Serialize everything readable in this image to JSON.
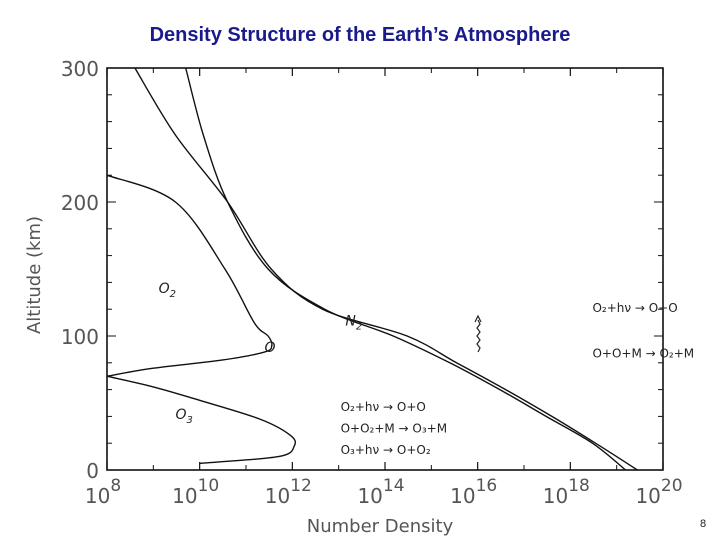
{
  "slide": {
    "title": "Density Structure of the Earth’s Atmosphere",
    "page_number": "8"
  },
  "chart_data": {
    "type": "line",
    "title": "Density Structure of the Earth’s Atmosphere",
    "xlabel": "Number Density",
    "ylabel": "Altitude (km)",
    "xscale": "log",
    "xlim": [
      100000000.0,
      1e+20
    ],
    "ylim": [
      0,
      300
    ],
    "x_ticks": [
      {
        "base": "10",
        "exp": "8",
        "value": 100000000.0
      },
      {
        "base": "10",
        "exp": "10",
        "value": 10000000000.0
      },
      {
        "base": "10",
        "exp": "12",
        "value": 1000000000000.0
      },
      {
        "base": "10",
        "exp": "14",
        "value": 100000000000000.0
      },
      {
        "base": "10",
        "exp": "16",
        "value": 1e+16
      },
      {
        "base": "10",
        "exp": "18",
        "value": 1e+18
      },
      {
        "base": "10",
        "exp": "20",
        "value": 1e+20
      }
    ],
    "y_ticks": [
      {
        "label": "0",
        "value": 0
      },
      {
        "label": "100",
        "value": 100
      },
      {
        "label": "200",
        "value": 200
      },
      {
        "label": "300",
        "value": 300
      }
    ],
    "grid": false,
    "series": [
      {
        "name": "N2",
        "label_pos": [
          14000000000000.0,
          108
        ],
        "points": [
          [
            1.55e+19,
            0
          ],
          [
            3e+18,
            20
          ],
          [
            3e+17,
            40
          ],
          [
            3e+16,
            60
          ],
          [
            2500000000000000.0,
            80
          ],
          [
            150000000000000.0,
            100
          ],
          [
            5000000000000.0,
            120
          ],
          [
            300000000000.0,
            150
          ],
          [
            40000000000.0,
            200
          ],
          [
            12000000000.0,
            250
          ],
          [
            5000000000.0,
            300
          ]
        ]
      },
      {
        "name": "O2",
        "label_pos": [
          1300000000.0,
          132
        ],
        "points": [
          [
            2.8e+19,
            0
          ],
          [
            3.5e+18,
            20
          ],
          [
            4e+17,
            40
          ],
          [
            4e+16,
            60
          ],
          [
            3500000000000000.0,
            80
          ],
          [
            300000000000000.0,
            100
          ],
          [
            4500000000000.0,
            120
          ],
          [
            350000000000.0,
            150
          ],
          [
            40000000000.0,
            200
          ],
          [
            3000000000.0,
            250
          ],
          [
            400000000.0,
            300
          ]
        ]
      },
      {
        "name": "O",
        "label_pos": [
          250000000000.0,
          88
        ],
        "points": [
          [
            100000000.0,
            70
          ],
          [
            1000000000.0,
            76
          ],
          [
            30000000000.0,
            82
          ],
          [
            250000000000.0,
            88
          ],
          [
            360000000000.0,
            93
          ],
          [
            300000000000.0,
            100
          ],
          [
            150000000000.0,
            110
          ],
          [
            35000000000.0,
            150
          ],
          [
            3000000000.0,
            200
          ],
          [
            100000000.0,
            220
          ]
        ]
      },
      {
        "name": "O3",
        "label_pos": [
          3000000000.0,
          38
        ],
        "points": [
          [
            10000000000.0,
            5
          ],
          [
            500000000000.0,
            10
          ],
          [
            1100000000000.0,
            18
          ],
          [
            900000000000.0,
            26
          ],
          [
            200000000000.0,
            38
          ],
          [
            10000000000.0,
            52
          ],
          [
            1000000000.0,
            62
          ],
          [
            100000000.0,
            70
          ]
        ]
      }
    ],
    "annotations": [
      {
        "text": "O₂+hν → O+O",
        "pos": [
          3e+18,
          118
        ]
      },
      {
        "text": "O+O+M → O₂+M",
        "pos": [
          3e+18,
          84
        ]
      },
      {
        "text": "O₂+hν → O+O",
        "pos": [
          11000000000000.0,
          44
        ]
      },
      {
        "text": "O+O₂+M → O₃+M",
        "pos": [
          11000000000000.0,
          28
        ]
      },
      {
        "text": "O₃+hν → O+O₂",
        "pos": [
          11000000000000.0,
          12
        ]
      }
    ]
  }
}
